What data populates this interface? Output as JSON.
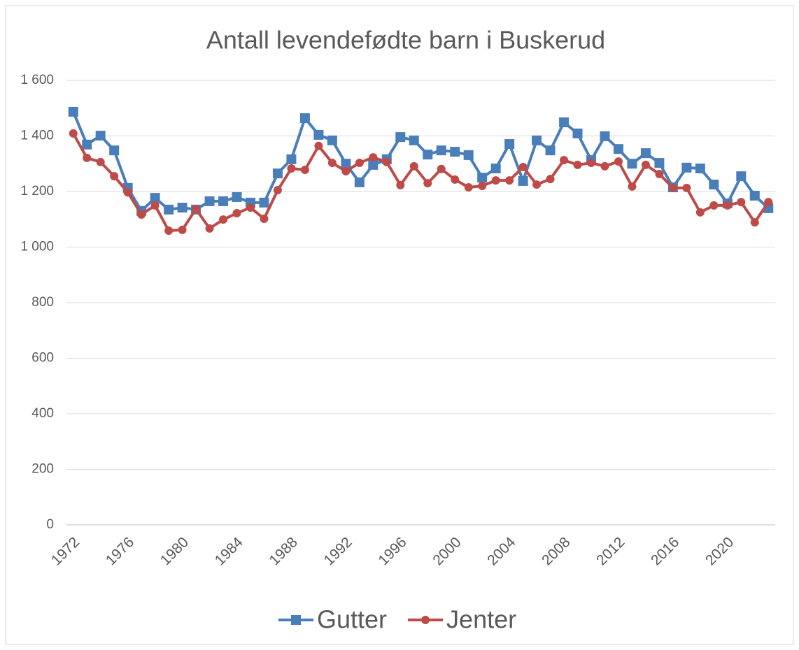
{
  "chart_data": {
    "type": "line",
    "title": "Antall levendefødte barn i Buskerud",
    "categories": [
      "1972",
      null,
      null,
      null,
      "1976",
      null,
      null,
      null,
      "1980",
      null,
      null,
      null,
      "1984",
      null,
      null,
      null,
      "1988",
      null,
      null,
      null,
      "1992",
      null,
      null,
      null,
      "1996",
      null,
      null,
      null,
      "2000",
      null,
      null,
      null,
      "2004",
      null,
      null,
      null,
      "2008",
      null,
      null,
      null,
      "2012",
      null,
      null,
      null,
      "2016",
      null,
      null,
      null,
      "2020",
      null,
      null,
      null
    ],
    "series": [
      {
        "name": "Gutter",
        "color": "#4a7ebb",
        "marker": "square",
        "values": [
          1487,
          1369,
          1401,
          1348,
          1213,
          1130,
          1177,
          1135,
          1142,
          1135,
          1165,
          1165,
          1180,
          1160,
          1160,
          1265,
          1316,
          1464,
          1404,
          1384,
          1300,
          1233,
          1296,
          1316,
          1396,
          1384,
          1333,
          1348,
          1343,
          1331,
          1250,
          1283,
          1371,
          1238,
          1384,
          1348,
          1449,
          1409,
          1313,
          1399,
          1353,
          1300,
          1338,
          1303,
          1215,
          1286,
          1283,
          1225,
          1157,
          1255,
          1185,
          1140
        ]
      },
      {
        "name": "Jenter",
        "color": "#be4b48",
        "marker": "circle",
        "values": [
          1409,
          1321,
          1306,
          1255,
          1197,
          1117,
          1150,
          1059,
          1062,
          1137,
          1067,
          1099,
          1122,
          1142,
          1102,
          1205,
          1283,
          1278,
          1364,
          1303,
          1273,
          1303,
          1323,
          1306,
          1223,
          1291,
          1230,
          1281,
          1243,
          1215,
          1220,
          1240,
          1240,
          1288,
          1225,
          1245,
          1313,
          1296,
          1303,
          1291,
          1308,
          1218,
          1296,
          1263,
          1213,
          1213,
          1125,
          1150,
          1150,
          1162,
          1089,
          1162
        ]
      }
    ],
    "ylim": [
      0,
      1600
    ],
    "yticks": [
      0,
      200,
      400,
      600,
      800,
      {
        "value": 1000,
        "label": "1 000"
      },
      {
        "value": 1200,
        "label": "1 200"
      },
      {
        "value": 1400,
        "label": "1 400"
      },
      {
        "value": 1600,
        "label": "1 600"
      }
    ],
    "grid": true,
    "legend": "bottom"
  }
}
